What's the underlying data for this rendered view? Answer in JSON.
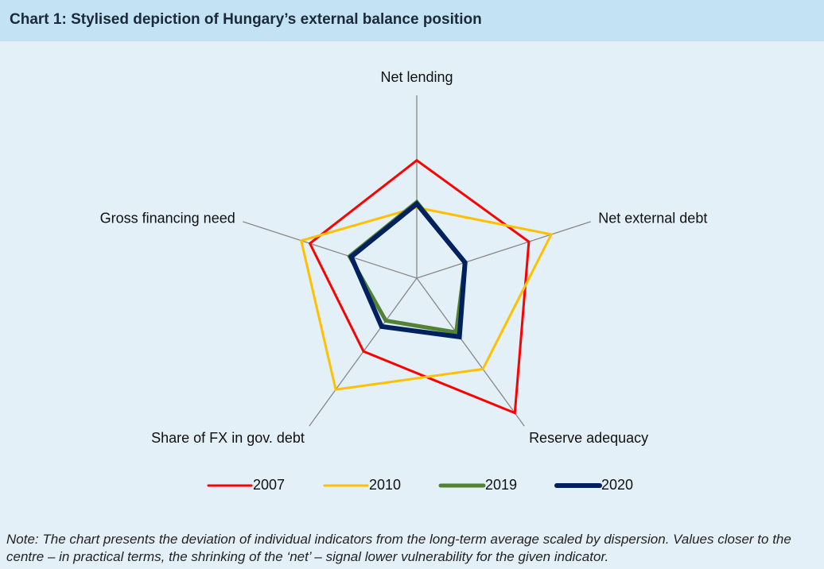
{
  "chart_data": {
    "type": "radar",
    "title": "Chart 1: Stylised depiction of Hungary’s external balance position",
    "categories": [
      "Net lending",
      "Net external debt",
      "Reserve adequacy",
      "Share of FX in gov. debt",
      "Gross financing need"
    ],
    "rlim": [
      0,
      10
    ],
    "series": [
      {
        "name": "2007",
        "color": "#ff0000",
        "values": [
          6.5,
          6.5,
          9.2,
          5.0,
          6.2
        ]
      },
      {
        "name": "2010",
        "color": "#ffc000",
        "values": [
          3.9,
          7.8,
          6.2,
          7.6,
          6.7
        ]
      },
      {
        "name": "2019",
        "color": "#548235",
        "values": [
          4.2,
          2.8,
          3.7,
          2.9,
          3.9
        ]
      },
      {
        "name": "2020",
        "color": "#002060",
        "values": [
          4.1,
          2.8,
          4.0,
          3.3,
          3.8
        ]
      }
    ],
    "legend": "bottom",
    "note": "Note: The chart presents the deviation of individual indicators from the long-term average scaled by dispersion. Values closer to the centre – in practical terms, the shrinking of the ‘net’ – signal lower vulnerability for the given indicator."
  }
}
